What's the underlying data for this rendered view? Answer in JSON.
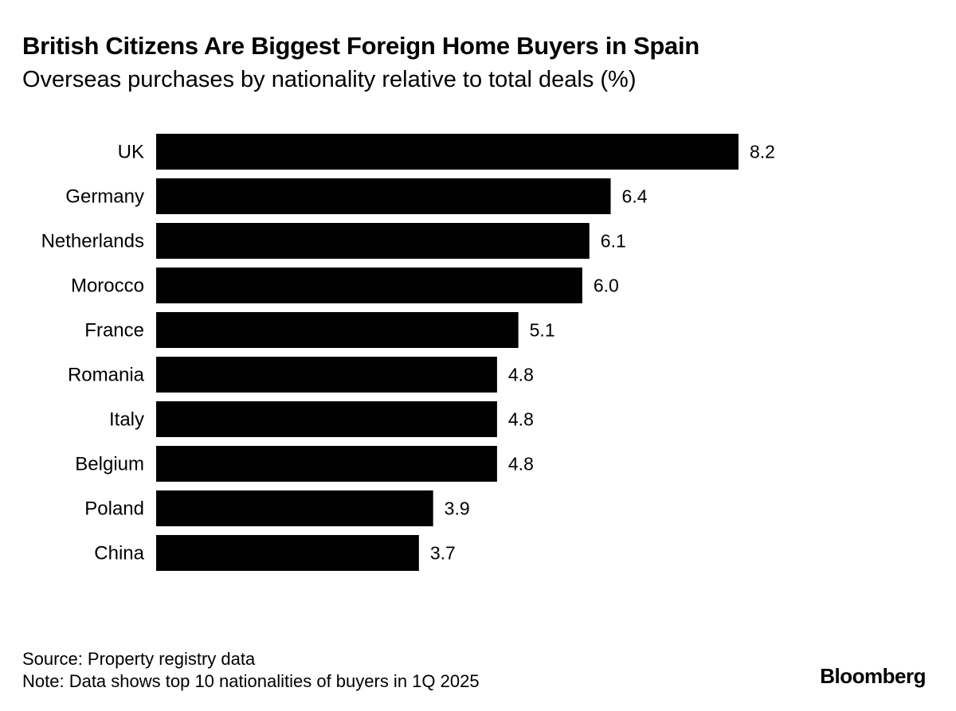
{
  "title": "British Citizens Are Biggest Foreign Home Buyers in Spain",
  "subtitle": "Overseas purchases by nationality relative to total deals (%)",
  "chart_data": {
    "type": "bar",
    "orientation": "horizontal",
    "title": "British Citizens Are Biggest Foreign Home Buyers in Spain",
    "subtitle": "Overseas purchases by nationality relative to total deals (%)",
    "xlabel": "",
    "ylabel": "",
    "categories": [
      "UK",
      "Germany",
      "Netherlands",
      "Morocco",
      "France",
      "Romania",
      "Italy",
      "Belgium",
      "Poland",
      "China"
    ],
    "values": [
      8.2,
      6.4,
      6.1,
      6.0,
      5.1,
      4.8,
      4.8,
      4.8,
      3.9,
      3.7
    ],
    "value_labels": [
      "8.2",
      "6.4",
      "6.1",
      "6.0",
      "5.1",
      "4.8",
      "4.8",
      "4.8",
      "3.9",
      "3.7"
    ],
    "xlim": [
      0,
      8.2
    ],
    "grid": false,
    "bar_color": "#000000"
  },
  "footer": {
    "source": "Source: Property registry data",
    "note": "Note: Data shows top 10 nationalities of buyers in 1Q 2025"
  },
  "brand": "Bloomberg"
}
